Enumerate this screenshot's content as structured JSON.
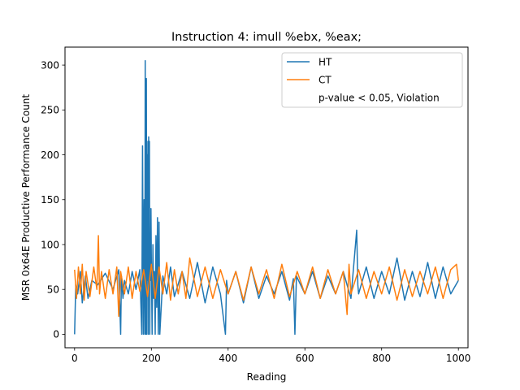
{
  "chart_data": {
    "type": "line",
    "title": "Instruction 4: imull %ebx, %eax;",
    "xlabel": "Reading",
    "ylabel": "MSR 0x64E Productive Performance Count",
    "xlim": [
      -25,
      1025
    ],
    "ylim": [
      -15,
      320
    ],
    "xticks": [
      0,
      200,
      400,
      600,
      800,
      1000
    ],
    "yticks": [
      0,
      50,
      100,
      150,
      200,
      250,
      300
    ],
    "grid": false,
    "legend_position": "top-right",
    "legend": [
      {
        "label": "HT",
        "color": "#1f77b4"
      },
      {
        "label": "CT",
        "color": "#ff7f0e"
      },
      {
        "label": "p-value < 0.05, Violation",
        "color": ""
      }
    ],
    "series": [
      {
        "name": "HT",
        "color": "#1f77b4",
        "x": [
          0,
          3,
          8,
          15,
          20,
          28,
          35,
          45,
          60,
          80,
          100,
          115,
          120,
          122,
          126,
          130,
          140,
          150,
          160,
          170,
          175,
          177,
          179,
          181,
          183,
          184,
          185,
          186,
          187,
          188,
          189,
          190,
          191,
          192,
          193,
          194,
          195,
          196,
          197,
          198,
          199,
          200,
          202,
          204,
          206,
          208,
          210,
          212,
          214,
          216,
          218,
          220,
          222,
          230,
          240,
          250,
          260,
          280,
          300,
          320,
          340,
          360,
          380,
          393,
          396,
          400,
          420,
          440,
          460,
          480,
          500,
          520,
          540,
          560,
          570,
          574,
          578,
          600,
          620,
          640,
          660,
          680,
          700,
          720,
          735,
          738,
          740,
          760,
          780,
          800,
          820,
          840,
          860,
          880,
          900,
          920,
          940,
          960,
          980,
          1000
        ],
        "y": [
          0,
          55,
          45,
          70,
          35,
          65,
          40,
          60,
          55,
          68,
          50,
          72,
          0,
          65,
          40,
          60,
          45,
          70,
          50,
          72,
          0,
          210,
          0,
          150,
          0,
          305,
          90,
          0,
          285,
          0,
          200,
          60,
          215,
          0,
          220,
          60,
          215,
          0,
          105,
          60,
          140,
          80,
          0,
          100,
          40,
          70,
          0,
          110,
          30,
          130,
          0,
          125,
          0,
          65,
          45,
          75,
          42,
          70,
          40,
          80,
          35,
          75,
          45,
          0,
          60,
          45,
          70,
          35,
          75,
          40,
          65,
          45,
          70,
          38,
          62,
          0,
          65,
          45,
          70,
          40,
          65,
          45,
          70,
          40,
          116,
          55,
          45,
          75,
          40,
          70,
          45,
          85,
          38,
          70,
          42,
          80,
          40,
          75,
          45,
          60
        ]
      },
      {
        "name": "CT",
        "color": "#ff7f0e",
        "x": [
          0,
          5,
          10,
          15,
          20,
          25,
          30,
          40,
          50,
          58,
          62,
          65,
          70,
          80,
          90,
          100,
          110,
          115,
          120,
          130,
          140,
          150,
          160,
          170,
          180,
          190,
          200,
          210,
          220,
          230,
          240,
          250,
          260,
          270,
          280,
          290,
          300,
          320,
          340,
          360,
          380,
          400,
          420,
          440,
          460,
          480,
          500,
          520,
          540,
          560,
          580,
          600,
          620,
          640,
          660,
          680,
          700,
          710,
          715,
          720,
          740,
          760,
          780,
          800,
          820,
          840,
          860,
          880,
          900,
          920,
          940,
          960,
          980,
          995,
          1000
        ],
        "y": [
          72,
          40,
          75,
          45,
          78,
          38,
          70,
          42,
          75,
          50,
          110,
          45,
          70,
          40,
          72,
          45,
          75,
          20,
          70,
          45,
          75,
          40,
          70,
          48,
          72,
          42,
          78,
          40,
          75,
          45,
          80,
          38,
          72,
          45,
          70,
          40,
          85,
          42,
          75,
          40,
          72,
          45,
          70,
          38,
          75,
          45,
          72,
          40,
          78,
          42,
          70,
          45,
          75,
          40,
          72,
          45,
          70,
          22,
          78,
          45,
          72,
          40,
          70,
          45,
          75,
          38,
          72,
          42,
          70,
          45,
          75,
          40,
          72,
          78,
          60
        ]
      }
    ]
  }
}
